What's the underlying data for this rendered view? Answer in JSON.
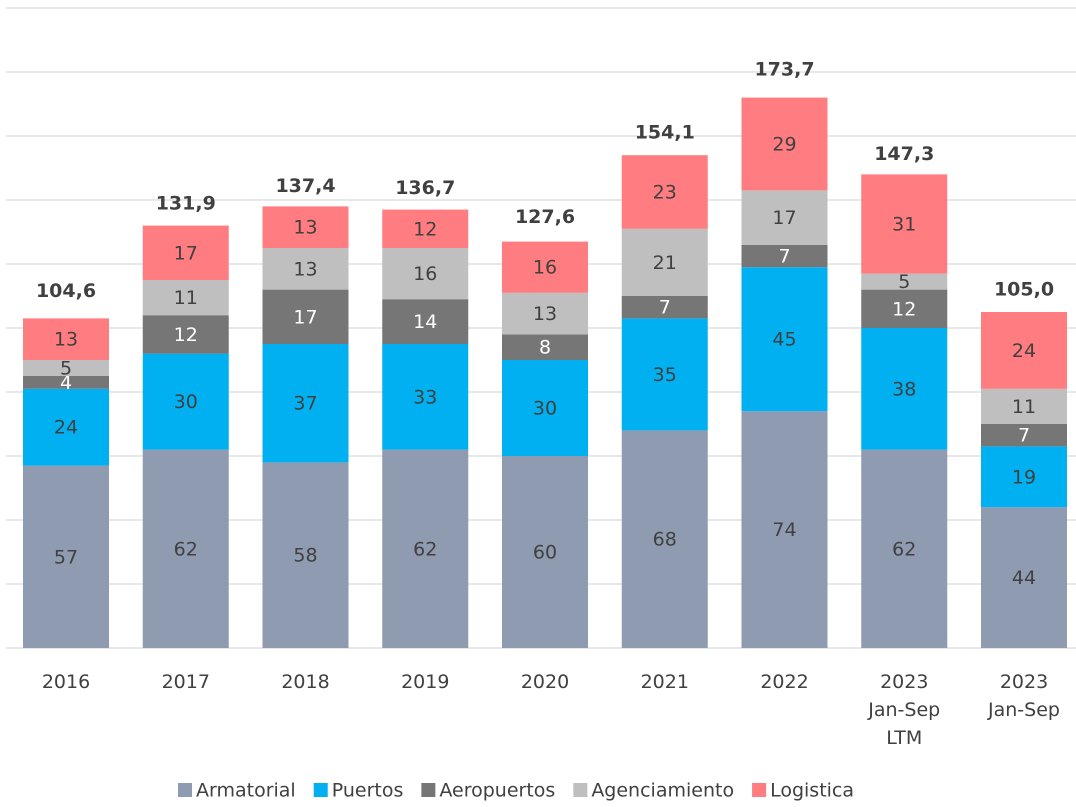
{
  "chart_data": {
    "type": "stacked_bar",
    "categories": [
      "2016",
      "2017",
      "2018",
      "2019",
      "2020",
      "2021",
      "2022",
      "2023 Jan-Sep LTM",
      "2023 Jan-Sep"
    ],
    "series": [
      {
        "name": "Armatorial",
        "color": "#8e9bb0",
        "values": [
          57,
          62,
          58,
          62,
          60,
          68,
          74,
          62,
          44
        ]
      },
      {
        "name": "Puertos",
        "color": "#00b0f0",
        "values": [
          24,
          30,
          37,
          33,
          30,
          35,
          45,
          38,
          19
        ]
      },
      {
        "name": "Aeropuertos",
        "color": "#767676",
        "values": [
          4,
          12,
          17,
          14,
          8,
          7,
          7,
          12,
          7
        ]
      },
      {
        "name": "Agenciamiento",
        "color": "#bfbfbf",
        "values": [
          5,
          11,
          13,
          16,
          13,
          21,
          17,
          5,
          11
        ]
      },
      {
        "name": "Logistica",
        "color": "#ff7c80",
        "values": [
          13,
          17,
          13,
          12,
          16,
          23,
          29,
          31,
          24
        ]
      }
    ],
    "totals": [
      104.6,
      131.9,
      137.4,
      136.7,
      127.6,
      154.1,
      173.7,
      147.3,
      105.0
    ],
    "total_labels": [
      "104,6",
      "131,9",
      "137,4",
      "136,7",
      "127,6",
      "154,1",
      "173,7",
      "147,3",
      "105,0"
    ],
    "ylim": [
      0,
      200
    ],
    "yticks": [
      0,
      20,
      40,
      60,
      80,
      100,
      120,
      140,
      160,
      180,
      200
    ],
    "grid": true
  }
}
